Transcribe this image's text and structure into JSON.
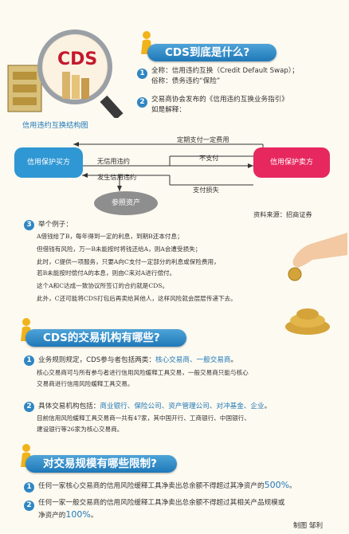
{
  "header": {
    "logo_text": "CDS",
    "section1_title": "CDS到底是什么?",
    "full_name": "全称：信用违约互换（Credit Default Swap）；",
    "common_name": "俗称：债务违约“保险”",
    "definition_intro": "交易商协会发布的《信用违约互换业务指引》",
    "definition_intro2": "如是解释：",
    "diagram_title": "信用违约互换结构图"
  },
  "diagram": {
    "buyer": "信用保护买方",
    "seller": "信用保护卖方",
    "fixed_fee": "定期支付一定费用",
    "no_default": "无信用违约",
    "no_pay": "不支付",
    "default_occurs": "发生信用违约",
    "pay_loss": "支付损失",
    "reference_asset": "参照资产",
    "source": "资料来源：招商证券"
  },
  "example": {
    "label": "举个例子：",
    "lines": [
      "A借钱给了B，每年得到一定的利息，到期B还本付息；",
      "但借钱有风险，万一B未能按时将钱还给A，则A会遭受损失；",
      "此时，C提供一项服务，只要A向C支付一定部分的利息或保险费用，",
      "若B未能按时偿付A的本息，则由C来对A进行偿付。",
      "这个A和C达成一致协议所签订的合约就是CDS。",
      "此外，C还可能将CDS打包后再卖给其他人，这样风险就会层层传递下去。"
    ]
  },
  "section2": {
    "title": "CDS的交易机构有哪些?",
    "item1_prefix": "业务规则规定，CDS参与者包括两类：",
    "item1_highlight": "核心交易商、一般交易商",
    "item1_suffix": "。",
    "item1_detail": [
      "核心交易商可与所有参与者进行信用风险缓释工具交易，一般交易商只能与核心",
      "交易商进行信用风险缓释工具交易。"
    ],
    "item2_prefix": "具体交易机构包括：",
    "item2_highlight": "商业银行、保险公司、资产管理公司、对冲基金、企业",
    "item2_suffix": "。",
    "item2_detail": [
      "目前信用风险缓释工具交易商一共有47家，其中国开行、工商银行、中国银行、",
      "建设银行等26家为核心交易商。"
    ]
  },
  "section3": {
    "title": "对交易规模有哪些限制?",
    "item1_text": "任何一家核心交易商的信用风险缓释工具净卖出总余额不得超过其净资产的",
    "item1_value": "500%",
    "item1_suffix": "。",
    "item2_text": "任何一家一般交易商的信用风险缓释工具净卖出总余额不得超过其相关产品规模或",
    "item2_text2": "净资产的",
    "item2_value": "100%",
    "item2_suffix": "。",
    "credit": "制图 邹利"
  },
  "numbers": [
    "1",
    "2",
    "3",
    "1",
    "2",
    "1",
    "2"
  ],
  "colors": {
    "accent": "#1f78b8",
    "buyer": "#2f97d3",
    "seller": "#e6285e",
    "reference": "#9a9a9a"
  }
}
